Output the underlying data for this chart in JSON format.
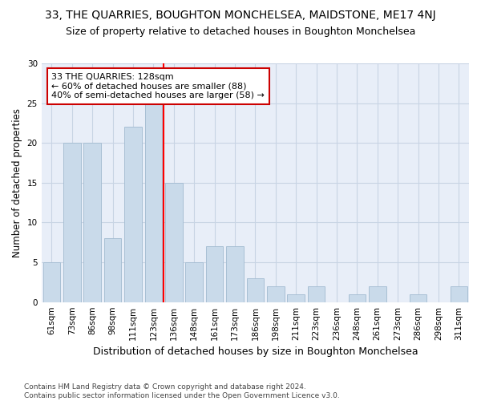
{
  "title1": "33, THE QUARRIES, BOUGHTON MONCHELSEA, MAIDSTONE, ME17 4NJ",
  "title2": "Size of property relative to detached houses in Boughton Monchelsea",
  "xlabel": "Distribution of detached houses by size in Boughton Monchelsea",
  "ylabel": "Number of detached properties",
  "footnote": "Contains HM Land Registry data © Crown copyright and database right 2024.\nContains public sector information licensed under the Open Government Licence v3.0.",
  "categories": [
    "61sqm",
    "73sqm",
    "86sqm",
    "98sqm",
    "111sqm",
    "123sqm",
    "136sqm",
    "148sqm",
    "161sqm",
    "173sqm",
    "186sqm",
    "198sqm",
    "211sqm",
    "223sqm",
    "236sqm",
    "248sqm",
    "261sqm",
    "273sqm",
    "286sqm",
    "298sqm",
    "311sqm"
  ],
  "values": [
    5,
    20,
    20,
    8,
    22,
    25,
    15,
    5,
    7,
    7,
    3,
    2,
    1,
    2,
    0,
    1,
    2,
    0,
    1,
    0,
    2
  ],
  "bar_color": "#c9daea",
  "bar_edge_color": "#a8bfd4",
  "grid_color": "#c8d4e4",
  "bg_color": "#e8eef8",
  "annotation_label": "33 THE QUARRIES: 128sqm\n← 60% of detached houses are smaller (88)\n40% of semi-detached houses are larger (58) →",
  "annotation_box_color": "#ffffff",
  "annotation_box_edge": "#cc0000",
  "vline_x": 5.5,
  "ylim": [
    0,
    30
  ],
  "yticks": [
    0,
    5,
    10,
    15,
    20,
    25,
    30
  ],
  "title1_fontsize": 10,
  "title2_fontsize": 9,
  "xlabel_fontsize": 9,
  "ylabel_fontsize": 8.5,
  "tick_fontsize": 7.5,
  "annotation_fontsize": 8,
  "footnote_fontsize": 6.5
}
